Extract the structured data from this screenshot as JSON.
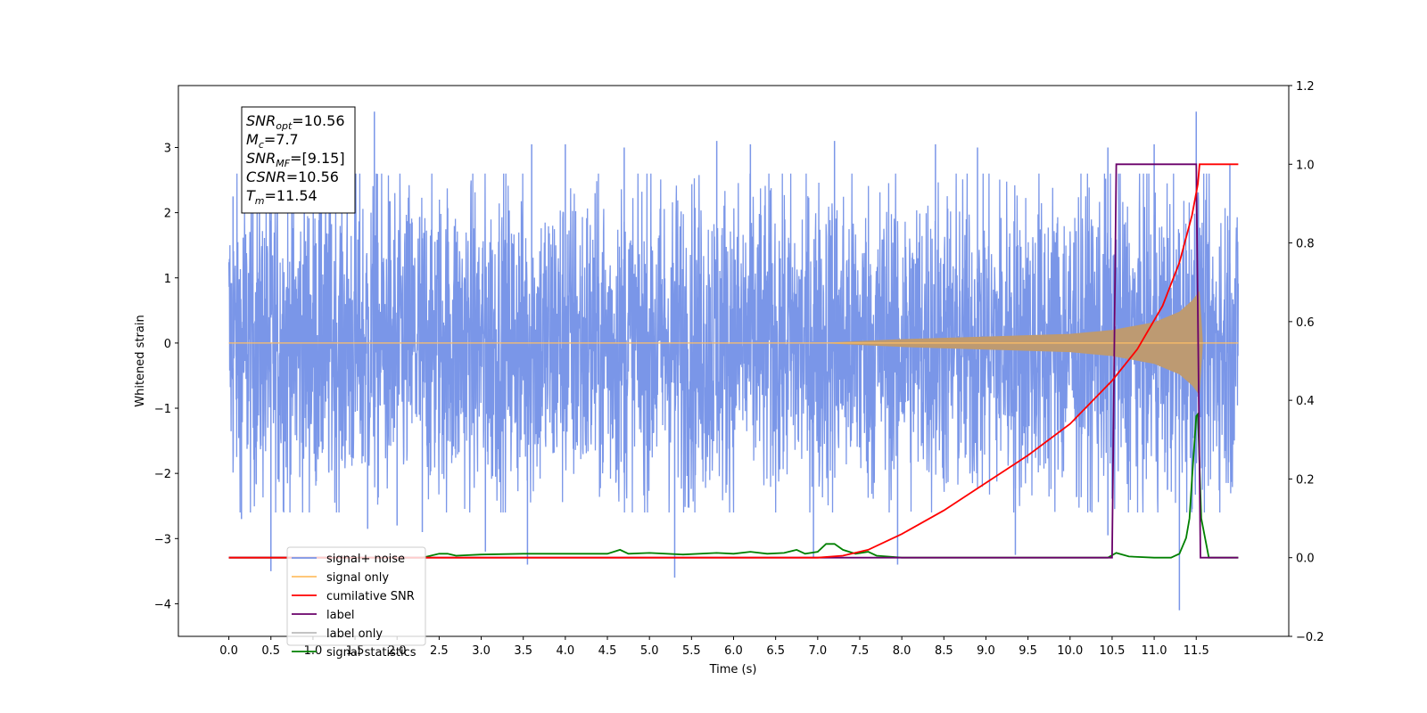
{
  "chart_data": {
    "type": "line",
    "xlabel": "Time (s)",
    "ylabel": "Whitened strain",
    "x_ticks": [
      "0.0",
      "0.5",
      "1.0",
      "1.5",
      "2.0",
      "2.5",
      "3.0",
      "3.5",
      "4.0",
      "4.5",
      "5.0",
      "5.5",
      "6.0",
      "6.5",
      "7.0",
      "7.5",
      "8.0",
      "8.5",
      "9.0",
      "9.5",
      "10.0",
      "10.5",
      "11.0",
      "11.5"
    ],
    "y_ticks_left": [
      "3",
      "2",
      "1",
      "0",
      "−1",
      "−2",
      "−3",
      "−4"
    ],
    "y_ticks_right": [
      "1.2",
      "1.0",
      "0.8",
      "0.6",
      "0.4",
      "0.2",
      "0.0",
      "−0.2"
    ],
    "xlim": [
      -0.6,
      12.6
    ],
    "ylim_left": [
      -4.5,
      3.95
    ],
    "ylim_right": [
      -0.2,
      1.2
    ],
    "legend_position": "lower-left",
    "annotation": [
      {
        "sym": "SNR",
        "sub": "opt",
        "val": "=10.56"
      },
      {
        "sym": "M",
        "sub": "c",
        "val": "=7.7"
      },
      {
        "sym": "SNR",
        "sub": "MF",
        "val": "=[9.15]"
      },
      {
        "sym": "CSNR",
        "sub": "",
        "val": "=10.56"
      },
      {
        "sym": "T",
        "sub": "m",
        "val": "=11.54"
      }
    ],
    "series": [
      {
        "name": "signal+ noise",
        "axis": "left",
        "color": "#7a96e8",
        "x_range": [
          0.0,
          12.0
        ],
        "envelope_typical": 2.0,
        "spikes": [
          [
            0.05,
            2.25
          ],
          [
            0.15,
            -2.7
          ],
          [
            0.5,
            -3.5
          ],
          [
            1.1,
            2.9
          ],
          [
            1.73,
            3.55
          ],
          [
            1.65,
            -2.85
          ],
          [
            2.0,
            -2.8
          ],
          [
            2.3,
            -2.9
          ],
          [
            3.05,
            -3.2
          ],
          [
            3.55,
            -3.4
          ],
          [
            3.6,
            3.05
          ],
          [
            4.0,
            3.05
          ],
          [
            4.7,
            3.0
          ],
          [
            5.3,
            -3.6
          ],
          [
            5.8,
            3.1
          ],
          [
            6.2,
            3.05
          ],
          [
            6.95,
            -3.3
          ],
          [
            7.2,
            3.1
          ],
          [
            7.95,
            -3.4
          ],
          [
            8.4,
            3.05
          ],
          [
            8.9,
            3.0
          ],
          [
            9.35,
            -3.25
          ],
          [
            10.45,
            3.0
          ],
          [
            10.45,
            -2.95
          ],
          [
            11.0,
            3.05
          ],
          [
            11.3,
            -4.1
          ],
          [
            11.5,
            3.55
          ],
          [
            11.9,
            2.75
          ]
        ]
      },
      {
        "name": "signal only",
        "axis": "left",
        "color": "#ffbf66",
        "chirp_amplitude": [
          [
            0.0,
            0.0
          ],
          [
            7.0,
            0.0
          ],
          [
            8.0,
            0.06
          ],
          [
            9.0,
            0.1
          ],
          [
            10.0,
            0.14
          ],
          [
            10.5,
            0.2
          ],
          [
            11.0,
            0.32
          ],
          [
            11.3,
            0.48
          ],
          [
            11.45,
            0.65
          ],
          [
            11.54,
            0.8
          ],
          [
            11.58,
            0.0
          ],
          [
            12.0,
            0.0
          ]
        ]
      },
      {
        "name": "cumilative SNR",
        "axis": "right",
        "color": "#ff0000",
        "x": [
          0.0,
          7.0,
          7.3,
          7.6,
          8.0,
          8.5,
          9.0,
          9.5,
          10.0,
          10.5,
          10.8,
          11.1,
          11.3,
          11.45,
          11.52,
          11.54,
          12.0
        ],
        "y": [
          0.0,
          0.0,
          0.005,
          0.02,
          0.06,
          0.12,
          0.19,
          0.26,
          0.34,
          0.45,
          0.53,
          0.64,
          0.75,
          0.87,
          0.95,
          1.0,
          1.0
        ]
      },
      {
        "name": "label",
        "axis": "right",
        "color": "#6a006a",
        "x": [
          0.0,
          10.5,
          10.55,
          11.5,
          11.55,
          12.0
        ],
        "y": [
          0.0,
          0.0,
          1.0,
          1.0,
          0.0,
          0.0
        ]
      },
      {
        "name": "label only",
        "axis": "right",
        "color": "#bbbbbb"
      },
      {
        "name": "signal statistics",
        "axis": "right",
        "color": "#008000",
        "x": [
          0.0,
          2.3,
          2.5,
          2.6,
          2.7,
          3.0,
          3.5,
          4.0,
          4.5,
          4.65,
          4.75,
          5.0,
          5.4,
          5.8,
          6.0,
          6.2,
          6.4,
          6.6,
          6.75,
          6.85,
          7.0,
          7.1,
          7.2,
          7.3,
          7.45,
          7.6,
          7.7,
          8.0,
          9.0,
          9.5,
          10.0,
          10.45,
          10.55,
          10.7,
          11.0,
          11.2,
          11.3,
          11.38,
          11.42,
          11.45,
          11.5,
          11.52,
          11.56,
          11.65,
          12.0
        ],
        "y": [
          0.0,
          0.0,
          0.01,
          0.01,
          0.005,
          0.008,
          0.01,
          0.01,
          0.01,
          0.02,
          0.01,
          0.012,
          0.008,
          0.012,
          0.01,
          0.015,
          0.01,
          0.012,
          0.02,
          0.01,
          0.015,
          0.035,
          0.035,
          0.02,
          0.01,
          0.015,
          0.005,
          0.0,
          0.0,
          0.0,
          0.0,
          0.0,
          0.012,
          0.003,
          0.0,
          0.0,
          0.01,
          0.05,
          0.1,
          0.2,
          0.36,
          0.365,
          0.1,
          0.0,
          0.0
        ]
      }
    ]
  }
}
